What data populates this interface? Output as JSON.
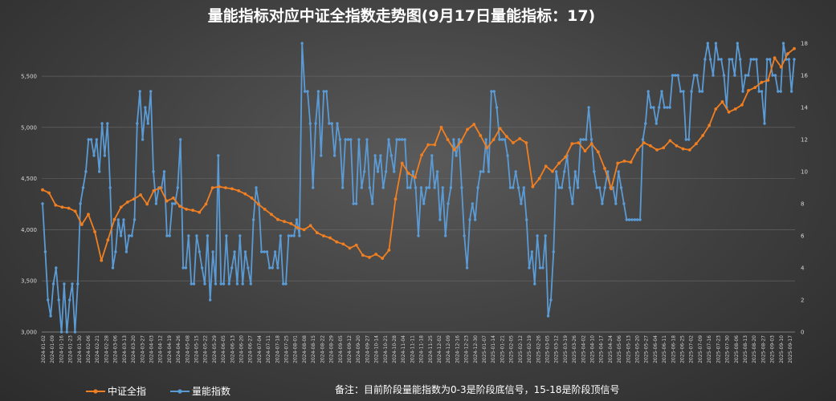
{
  "chart_data": {
    "type": "line",
    "title": "量能指标对应中证全指数走势图(9月17日量能指标：17)",
    "note": "备注：目前阶段量能指数为0-3是阶段底信号，15-18是阶段顶信号",
    "y_left": {
      "range": [
        3000,
        5900
      ],
      "ticks": [
        "3,000",
        "3,500",
        "4,000",
        "4,500",
        "5,000",
        "5,500"
      ]
    },
    "y_right": {
      "range": [
        0,
        18.5
      ],
      "ticks": [
        "0",
        "2",
        "4",
        "6",
        "8",
        "10",
        "12",
        "14",
        "16",
        "18"
      ]
    },
    "legend": {
      "position": "bottom-left"
    },
    "grid": true,
    "colors": {
      "index": "#f07f22",
      "volume": "#5b9bd5"
    },
    "x_labels": [
      "2024-01-02",
      "2024-01-09",
      "2024-01-16",
      "2024-01-23",
      "2024-01-30",
      "2024-02-06",
      "2024-02-21",
      "2024-02-28",
      "2024-03-06",
      "2024-03-13",
      "2024-03-20",
      "2024-03-27",
      "2024-04-03",
      "2024-04-12",
      "2024-04-19",
      "2024-04-26",
      "2024-05-08",
      "2024-05-15",
      "2024-05-22",
      "2024-05-29",
      "2024-06-05",
      "2024-06-13",
      "2024-06-20",
      "2024-06-27",
      "2024-07-04",
      "2024-07-11",
      "2024-07-18",
      "2024-07-25",
      "2024-08-01",
      "2024-08-08",
      "2024-08-15",
      "2024-08-22",
      "2024-08-29",
      "2024-09-05",
      "2024-09-12",
      "2024-09-20",
      "2024-09-27",
      "2024-10-14",
      "2024-10-21",
      "2024-10-28",
      "2024-11-04",
      "2024-11-11",
      "2024-11-18",
      "2024-11-25",
      "2024-12-02",
      "2024-12-09",
      "2024-12-16",
      "2024-12-23",
      "2024-12-30",
      "2025-01-07",
      "2025-01-14",
      "2025-01-21",
      "2025-02-05",
      "2025-02-12",
      "2025-02-19",
      "2025-02-26",
      "2025-03-05",
      "2025-03-12",
      "2025-03-19",
      "2025-03-26",
      "2025-04-02",
      "2025-04-10",
      "2025-04-17",
      "2025-04-24",
      "2025-05-06",
      "2025-05-13",
      "2025-05-20",
      "2025-05-27",
      "2025-06-04",
      "2025-06-11",
      "2025-06-18",
      "2025-06-25",
      "2025-07-02",
      "2025-07-09",
      "2025-07-16",
      "2025-07-23",
      "2025-07-30",
      "2025-08-06",
      "2025-08-13",
      "2025-08-20",
      "2025-08-27",
      "2025-09-03",
      "2025-09-10",
      "2025-09-17"
    ],
    "series": [
      {
        "name": "中证全指",
        "axis": "left",
        "values": [
          4390,
          4360,
          4240,
          4220,
          4210,
          4180,
          4050,
          4150,
          3980,
          3700,
          3900,
          4100,
          4220,
          4270,
          4300,
          4340,
          4250,
          4380,
          4410,
          4280,
          4310,
          4230,
          4200,
          4190,
          4170,
          4250,
          4410,
          4420,
          4410,
          4400,
          4380,
          4350,
          4310,
          4250,
          4200,
          4150,
          4100,
          4080,
          4060,
          4020,
          4000,
          4040,
          3970,
          3940,
          3920,
          3880,
          3860,
          3820,
          3850,
          3750,
          3730,
          3760,
          3720,
          3800,
          4300,
          4650,
          4550,
          4510,
          4730,
          4830,
          4830,
          5000,
          4880,
          4780,
          4860,
          4980,
          5030,
          4920,
          4800,
          4880,
          4990,
          4910,
          4850,
          4890,
          4850,
          4420,
          4500,
          4620,
          4570,
          4650,
          4710,
          4840,
          4850,
          4770,
          4840,
          4760,
          4600,
          4400,
          4650,
          4670,
          4660,
          4780,
          4850,
          4820,
          4780,
          4800,
          4870,
          4820,
          4790,
          4780,
          4840,
          4920,
          5020,
          5180,
          5250,
          5150,
          5180,
          5220,
          5360,
          5390,
          5440,
          5460,
          5680,
          5590,
          5720,
          5770
        ]
      },
      {
        "name": "量能指数",
        "axis": "right",
        "values": [
          8,
          5,
          2,
          1,
          3,
          4,
          2,
          0,
          3,
          0,
          2,
          3,
          0,
          3,
          8,
          9,
          10,
          12,
          12,
          11,
          12,
          10,
          13,
          11,
          13,
          9,
          4,
          5,
          7,
          6,
          7,
          5,
          6,
          6,
          7,
          13,
          15,
          12,
          14,
          13,
          15,
          10,
          8,
          9,
          9,
          10,
          6,
          6,
          8,
          8,
          9,
          12,
          4,
          4,
          6,
          3,
          3,
          6,
          5,
          4,
          3,
          6,
          2,
          5,
          3,
          11,
          3,
          3,
          6,
          3,
          4,
          5,
          3,
          6,
          3,
          5,
          4,
          3,
          7,
          9,
          8,
          5,
          5,
          5,
          4,
          4,
          5,
          4,
          6,
          3,
          3,
          6,
          6,
          6,
          7,
          6,
          18,
          15,
          15,
          13,
          9,
          13,
          15,
          11,
          15,
          15,
          13,
          13,
          11,
          13,
          12,
          9,
          12,
          12,
          12,
          8,
          8,
          12,
          9,
          10,
          12,
          9,
          8,
          11,
          10,
          11,
          9,
          10,
          12,
          11,
          10,
          12,
          12,
          12,
          12,
          9,
          9,
          10,
          9,
          6,
          9,
          8,
          9,
          9,
          11,
          9,
          10,
          7,
          9,
          6,
          8,
          9,
          12,
          11,
          12,
          9,
          6,
          4,
          7,
          8,
          7,
          9,
          10,
          10,
          12,
          10,
          15,
          15,
          14,
          12,
          12,
          12,
          11,
          9,
          9,
          10,
          9,
          8,
          9,
          7,
          4,
          5,
          3,
          6,
          4,
          4,
          6,
          1,
          2,
          5,
          10,
          9,
          9,
          10,
          11,
          9,
          8,
          10,
          9,
          12,
          12,
          12,
          14,
          12,
          10,
          9,
          9,
          8,
          9,
          10,
          9,
          9,
          8,
          10,
          9,
          8,
          7,
          7,
          7,
          7,
          7,
          7,
          12,
          13,
          15,
          14,
          14,
          13,
          14,
          15,
          14,
          14,
          14,
          16,
          16,
          16,
          15,
          15,
          12,
          12,
          15,
          16,
          16,
          15,
          15,
          17,
          18,
          17,
          16,
          18,
          17,
          17,
          16,
          14,
          17,
          17,
          16,
          18,
          17,
          15,
          16,
          16,
          17,
          17,
          17,
          15,
          15,
          13,
          17,
          17,
          16,
          16,
          15,
          15,
          18,
          17,
          17,
          15,
          17
        ]
      }
    ]
  }
}
